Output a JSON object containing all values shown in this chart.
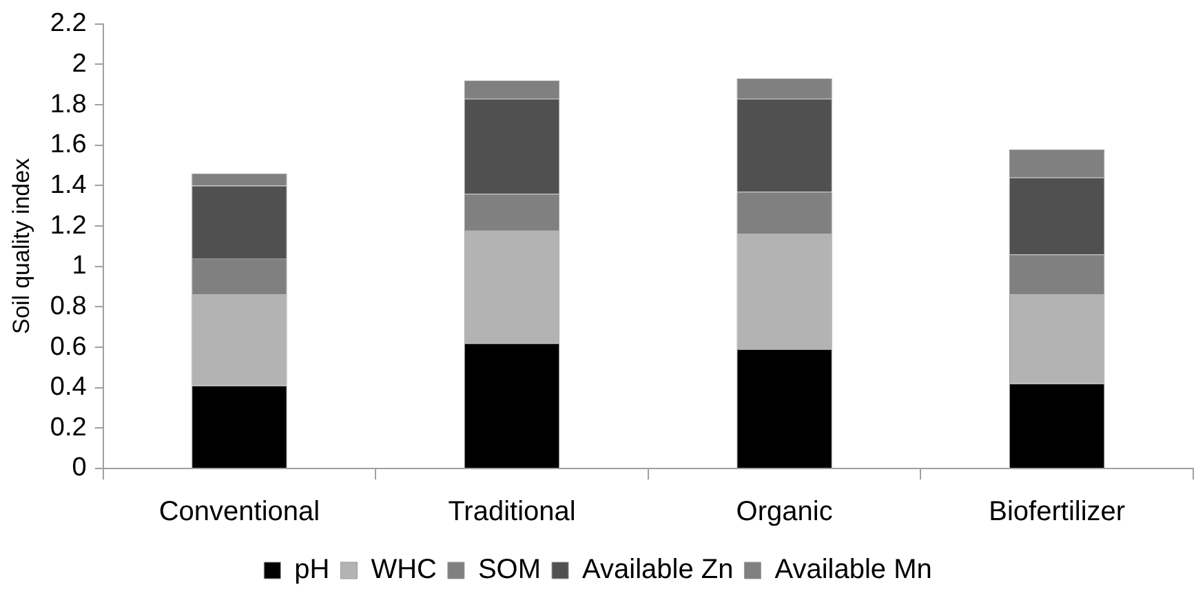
{
  "chart_data": {
    "type": "bar",
    "stacked": true,
    "ylabel": "Soil quality index",
    "categories": [
      "Conventional",
      "Traditional",
      "Organic",
      "Biofertilizer"
    ],
    "series": [
      {
        "name": "pH",
        "color": "#000000",
        "values": [
          0.41,
          0.62,
          0.59,
          0.42
        ]
      },
      {
        "name": "WHC",
        "color": "#b3b3b3",
        "values": [
          0.45,
          0.56,
          0.57,
          0.44
        ]
      },
      {
        "name": "SOM",
        "color": "#808080",
        "values": [
          0.18,
          0.18,
          0.21,
          0.2
        ]
      },
      {
        "name": "Available Zn",
        "color": "#505050",
        "values": [
          0.36,
          0.47,
          0.46,
          0.38
        ]
      },
      {
        "name": "Available Mn",
        "color": "#808080",
        "values": [
          0.06,
          0.09,
          0.1,
          0.14
        ]
      }
    ],
    "ylim": [
      0,
      2.2
    ],
    "yticks": [
      0,
      0.2,
      0.4,
      0.6,
      0.8,
      1,
      1.2,
      1.4,
      1.6,
      1.8,
      2,
      2.2
    ],
    "grid": false,
    "legend": "bottom"
  }
}
